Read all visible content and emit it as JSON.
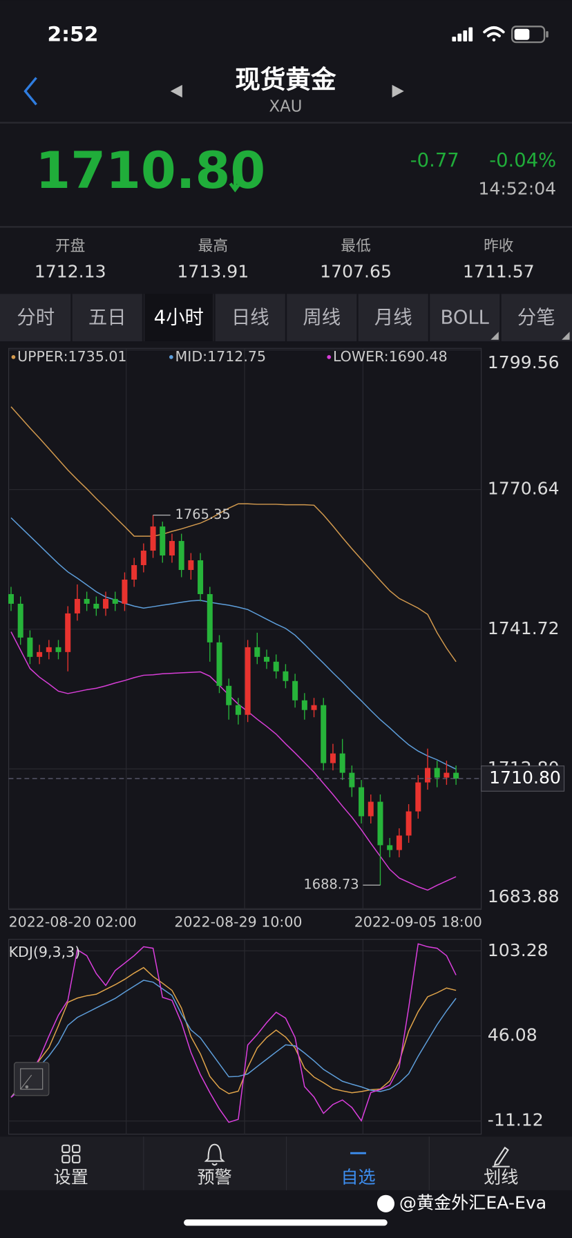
{
  "status_bar": {
    "time": "2:52"
  },
  "header": {
    "title": "现货黄金",
    "subtitle": "XAU"
  },
  "quote": {
    "price": "1710.80",
    "change": "-0.77",
    "change_pct": "-0.04%",
    "time": "14:52:04"
  },
  "stats": [
    {
      "label": "开盘",
      "value": "1712.13"
    },
    {
      "label": "最高",
      "value": "1713.91"
    },
    {
      "label": "最低",
      "value": "1707.65"
    },
    {
      "label": "昨收",
      "value": "1711.57"
    }
  ],
  "tabs": [
    "分时",
    "五日",
    "4小时",
    "日线",
    "周线",
    "月线",
    "BOLL",
    "分笔"
  ],
  "active_tab": 2,
  "chart_data": [
    {
      "type": "candlestick",
      "categories": [
        "2022-08-20 02:00",
        null,
        null,
        null,
        null,
        null,
        null,
        null,
        null,
        null,
        null,
        null,
        null,
        null,
        null,
        null,
        null,
        null,
        null,
        null,
        null,
        null,
        null,
        null,
        "2022-08-29 10:00",
        null,
        null,
        null,
        null,
        null,
        null,
        null,
        null,
        null,
        null,
        null,
        null,
        null,
        null,
        null,
        null,
        null,
        null,
        "2022-09-05 18:00",
        null,
        null,
        null,
        null
      ],
      "open": [
        1749,
        1747,
        1740,
        1736,
        1737,
        1738,
        1737,
        1745,
        1748,
        1747,
        1746,
        1748,
        1747,
        1752,
        1755,
        1758,
        1763,
        1757,
        1760,
        1754,
        1756,
        1749,
        1739,
        1730,
        1726,
        1724,
        1738,
        1736,
        1735,
        1733,
        1731,
        1727,
        1725,
        1726,
        1714,
        1716,
        1712,
        1709,
        1703,
        1706,
        1697,
        1696,
        1699,
        1704,
        1710,
        1713,
        1711,
        1712
      ],
      "high": [
        1750.5,
        1748.5,
        1741.5,
        1738.5,
        1739.5,
        1739.5,
        1746.5,
        1751,
        1749.5,
        1748.5,
        1749.5,
        1749.5,
        1753.5,
        1756.5,
        1759.5,
        1765.35,
        1764,
        1761.5,
        1761.5,
        1757.5,
        1757.5,
        1750.5,
        1740.5,
        1731.5,
        1727.5,
        1739.5,
        1741,
        1737.5,
        1736.5,
        1734.5,
        1732.5,
        1728.5,
        1727.5,
        1727.5,
        1718,
        1719,
        1713.5,
        1710.5,
        1707.5,
        1707.5,
        1698.5,
        1700.5,
        1705.5,
        1711.5,
        1717,
        1714.5,
        1714.5,
        1713.5
      ],
      "low": [
        1745.5,
        1738.5,
        1734.5,
        1734.5,
        1735.5,
        1735.5,
        1733,
        1743.5,
        1745.5,
        1744.5,
        1744.5,
        1745.5,
        1745.5,
        1750.5,
        1753.5,
        1756.5,
        1755.5,
        1755.5,
        1752.5,
        1752,
        1747.5,
        1735,
        1728.5,
        1723,
        1722,
        1722.5,
        1734.5,
        1733.5,
        1731.5,
        1729.5,
        1725.5,
        1723,
        1723.5,
        1712.5,
        1712.5,
        1710.5,
        1707,
        1701.5,
        1701.5,
        1688.73,
        1694.5,
        1694.5,
        1697.5,
        1702.5,
        1708.5,
        1709,
        1709.5,
        1709.5
      ],
      "close": [
        1747,
        1740,
        1736,
        1737,
        1738,
        1737,
        1745,
        1748,
        1747,
        1746,
        1748,
        1747,
        1752,
        1755,
        1758,
        1763,
        1757,
        1760,
        1754,
        1756,
        1749,
        1739,
        1730,
        1726,
        1724,
        1738,
        1736,
        1735,
        1733,
        1731,
        1727,
        1725,
        1726,
        1714,
        1716,
        1712,
        1709,
        1703,
        1706,
        1697,
        1696,
        1699,
        1704,
        1710,
        1713,
        1711,
        1712,
        1710.8
      ],
      "up_color": "#e8332f",
      "down_color": "#27b43a",
      "series": [
        {
          "name": "UPPER:1735.01",
          "color": "#d39a4e",
          "values": [
            1787.8,
            1785.6,
            1783.4,
            1781.3,
            1779.1,
            1776.9,
            1774.7,
            1772.7,
            1770.8,
            1768.8,
            1766.9,
            1764.9,
            1763.0,
            1761.0,
            1761.0,
            1761.0,
            1761.4,
            1762.0,
            1762.5,
            1763.1,
            1763.7,
            1764.6,
            1765.7,
            1766.8,
            1767.7,
            1767.7,
            1767.6,
            1767.6,
            1767.6,
            1767.5,
            1767.5,
            1767.5,
            1767.4,
            1765.4,
            1763.1,
            1760.7,
            1758.4,
            1756.2,
            1754.0,
            1751.8,
            1749.7,
            1748.1,
            1747.1,
            1746.1,
            1744.8,
            1741.0,
            1737.8,
            1735.01
          ]
        },
        {
          "name": "MID:1712.75",
          "color": "#5e9fdc",
          "values": [
            1764.8,
            1762.9,
            1761.0,
            1759.1,
            1757.2,
            1755.3,
            1753.6,
            1752.3,
            1750.9,
            1749.5,
            1748.4,
            1747.8,
            1747.1,
            1746.5,
            1746.1,
            1746.4,
            1746.7,
            1747.0,
            1747.3,
            1747.6,
            1747.7,
            1747.3,
            1747.0,
            1746.7,
            1746.3,
            1745.8,
            1744.8,
            1743.8,
            1742.8,
            1741.9,
            1740.5,
            1738.6,
            1736.6,
            1734.7,
            1732.7,
            1730.8,
            1728.8,
            1726.9,
            1724.9,
            1723.0,
            1721.3,
            1719.5,
            1717.8,
            1716.5,
            1715.5,
            1714.7,
            1713.7,
            1712.75
          ]
        },
        {
          "name": "LOWER:1690.48",
          "color": "#d83ed8",
          "values": [
            1741.2,
            1737.4,
            1733.6,
            1731.8,
            1730.4,
            1728.9,
            1728.4,
            1728.8,
            1729.2,
            1729.5,
            1730.0,
            1730.6,
            1731.1,
            1731.7,
            1732.2,
            1732.3,
            1732.5,
            1732.6,
            1732.7,
            1732.8,
            1732.9,
            1732.0,
            1730.1,
            1728.1,
            1726.2,
            1724.7,
            1723.1,
            1721.6,
            1720.0,
            1718.0,
            1716.1,
            1714.1,
            1712.1,
            1709.8,
            1707.5,
            1705.1,
            1702.8,
            1700.2,
            1697.4,
            1694.7,
            1692.0,
            1690.2,
            1689.3,
            1688.4,
            1687.7,
            1688.7,
            1689.6,
            1690.48
          ]
        }
      ],
      "ylim": [
        1683.88,
        1799.56
      ],
      "yticks": [
        1799.56,
        1770.64,
        1741.72,
        {
          "value": 1712.8,
          "label": "1712.80"
        },
        1683.88
      ],
      "last_price": {
        "value": 1710.8,
        "label": "1710.80"
      },
      "grid": true
    },
    {
      "type": "line",
      "title": "KDJ(9,3,3)",
      "ylim": [
        -20,
        111
      ],
      "yticks": [
        103.28,
        46.08,
        -11.12
      ],
      "series": [
        {
          "color": "#e2a54a",
          "values": [
            4.8,
            13.1,
            21.5,
            29.8,
            38.2,
            52.9,
            68.7,
            71.5,
            73.1,
            74.1,
            77.3,
            80.5,
            84.1,
            88.3,
            92.0,
            86,
            81.5,
            76.7,
            64.8,
            45.6,
            34.0,
            18.9,
            11.2,
            7.3,
            8.9,
            24.9,
            37.9,
            45.0,
            50.0,
            45.3,
            37.9,
            24.4,
            18.4,
            14.7,
            10.6,
            9.1,
            7.9,
            8.7,
            9.9,
            10.4,
            15.8,
            28.6,
            49.3,
            62.4,
            72.4,
            75.1,
            78.3,
            76.7
          ]
        },
        {
          "color": "#5e9fdc",
          "values": [
            4.8,
            11.7,
            18.7,
            25.6,
            32.6,
            41.2,
            53.2,
            58.5,
            61.7,
            64.9,
            68.1,
            71.3,
            75.5,
            79.5,
            83.5,
            82.2,
            77.7,
            73.3,
            60.8,
            50.1,
            44.8,
            36.0,
            27.3,
            18.6,
            18.9,
            20.5,
            25.5,
            30.4,
            35.3,
            40.1,
            39.4,
            34.6,
            29.3,
            23.6,
            19.6,
            15.6,
            13.6,
            11.8,
            9.6,
            8.7,
            10.4,
            14.5,
            20.6,
            32.4,
            43.0,
            53.6,
            62.9,
            71.4
          ]
        },
        {
          "color": "#dd3fe0",
          "values": [
            4.8,
            10,
            20,
            31,
            46,
            60,
            70,
            104,
            100,
            88,
            80,
            90,
            95,
            100,
            106,
            105,
            72,
            70,
            55,
            35,
            20,
            8,
            -3,
            -12,
            -10,
            40,
            47,
            55,
            62,
            58,
            45,
            12,
            5,
            -6,
            0,
            3,
            -2,
            -11,
            8,
            10,
            13,
            25,
            65,
            108,
            106,
            105,
            100,
            87
          ]
        }
      ],
      "grid": true
    }
  ],
  "nav": [
    "设置",
    "预警",
    "自选",
    "划线"
  ],
  "active_nav": 2,
  "watermark": "@黄金外汇EA-Eva"
}
